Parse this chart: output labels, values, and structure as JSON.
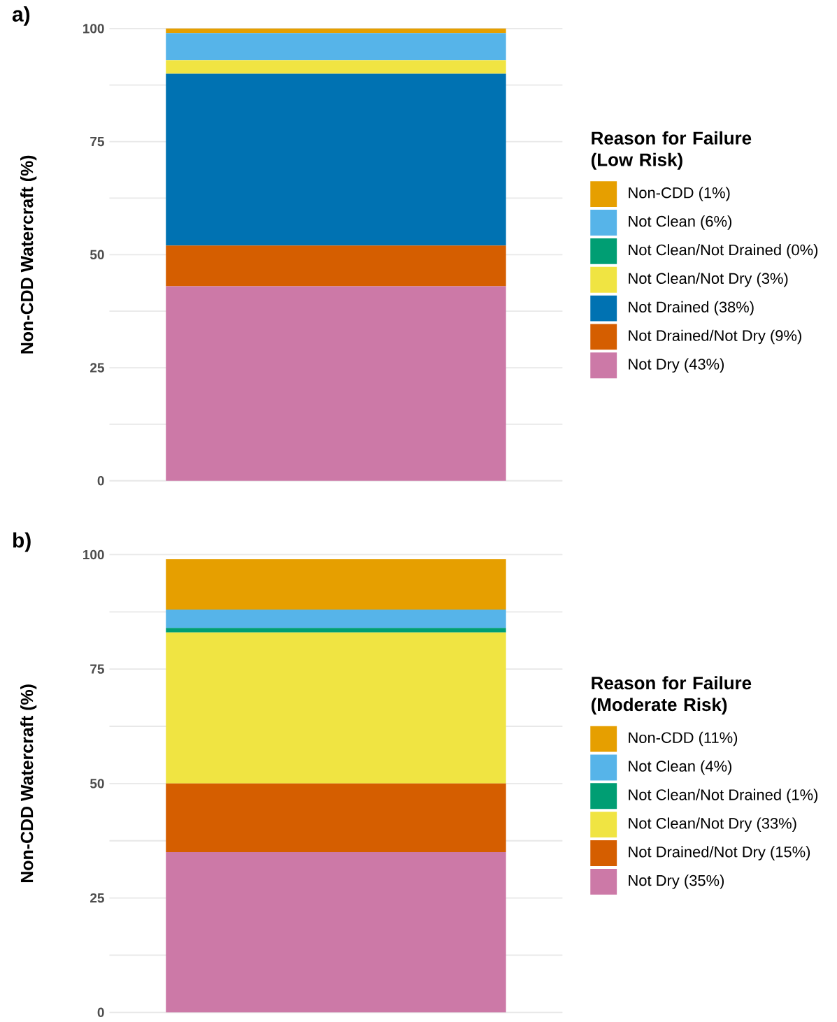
{
  "chart_data": [
    {
      "type": "bar",
      "title": "a)",
      "ylabel": "Non-CDD Watercraft (%)",
      "categories": [
        null
      ],
      "stacked": true,
      "ylim": [
        0,
        100
      ],
      "yticks": [
        0,
        {
          "value": 12.5,
          "label": null
        },
        25,
        {
          "value": 37.5,
          "label": null
        },
        50,
        {
          "value": 62.5,
          "label": null
        },
        75,
        {
          "value": 87.5,
          "label": null
        },
        100
      ],
      "grid": "y",
      "legend": "right",
      "legend_title": "Reason for Failure (Low Risk)",
      "series": [
        {
          "name": "Not Dry (43%)",
          "color": "#cc79a7",
          "values": [
            43
          ]
        },
        {
          "name": "Not Drained/Not Dry (9%)",
          "color": "#d55e00",
          "values": [
            9
          ]
        },
        {
          "name": "Not Drained (38%)",
          "color": "#0072b2",
          "values": [
            38
          ]
        },
        {
          "name": "Not Clean/Not Dry (3%)",
          "color": "#f0e442",
          "values": [
            3
          ]
        },
        {
          "name": "Not Clean/Not Drained (0%)",
          "color": "#009e73",
          "values": [
            0
          ]
        },
        {
          "name": "Not Clean (6%)",
          "color": "#56b4e9",
          "values": [
            6
          ]
        },
        {
          "name": "Non-CDD (1%)",
          "color": "#e69f00",
          "values": [
            1
          ]
        }
      ]
    },
    {
      "type": "bar",
      "title": "b)",
      "ylabel": "Non-CDD Watercraft (%)",
      "categories": [
        null
      ],
      "stacked": true,
      "ylim": [
        0,
        100
      ],
      "yticks": [
        0,
        {
          "value": 12.5,
          "label": null
        },
        25,
        {
          "value": 37.5,
          "label": null
        },
        50,
        {
          "value": 62.5,
          "label": null
        },
        75,
        {
          "value": 87.5,
          "label": null
        },
        100
      ],
      "grid": "y",
      "legend": "right",
      "legend_title": "Reason for Failure (Moderate Risk)",
      "series": [
        {
          "name": "Not Dry (35%)",
          "color": "#cc79a7",
          "values": [
            35
          ]
        },
        {
          "name": "Not Drained/Not Dry (15%)",
          "color": "#d55e00",
          "values": [
            15
          ]
        },
        {
          "name": "Not Clean/Not Dry (33%)",
          "color": "#f0e442",
          "values": [
            33
          ]
        },
        {
          "name": "Not Clean/Not Drained (1%)",
          "color": "#009e73",
          "values": [
            1
          ]
        },
        {
          "name": "Not Clean (4%)",
          "color": "#56b4e9",
          "values": [
            4
          ]
        },
        {
          "name": "Non-CDD (11%)",
          "color": "#e69f00",
          "values": [
            11
          ]
        }
      ]
    }
  ]
}
